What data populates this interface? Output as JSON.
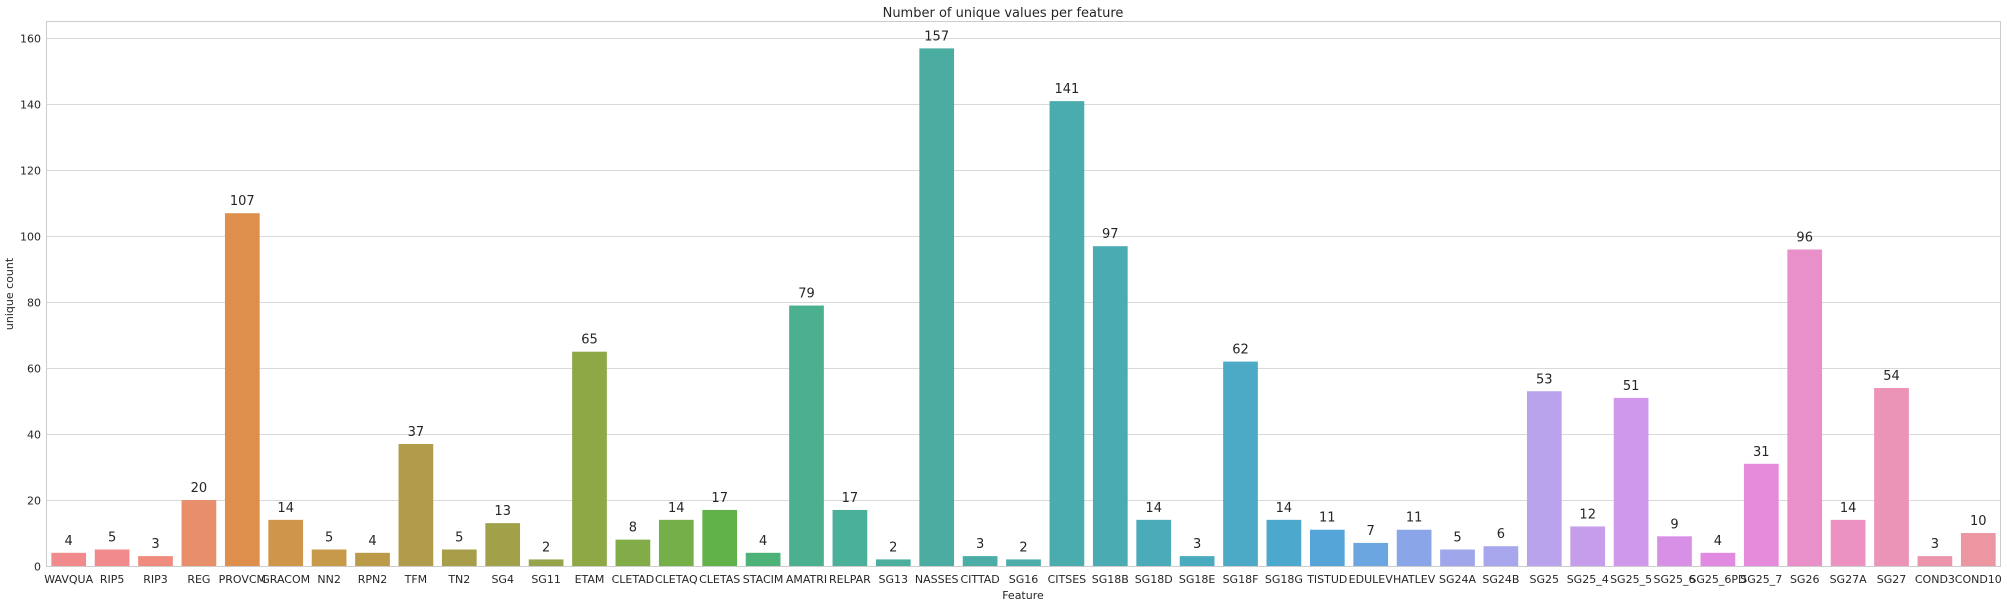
{
  "chart_data": {
    "type": "bar",
    "title": "Number of unique values per feature",
    "xlabel": "Feature",
    "ylabel": "unique count",
    "ylim": [
      0,
      165
    ],
    "yticks": [
      0,
      20,
      40,
      60,
      80,
      100,
      120,
      140,
      160
    ],
    "grid": true,
    "categories": [
      "WAVQUA",
      "RIP5",
      "RIP3",
      "REG",
      "PROVCM",
      "GRACOM",
      "NN2",
      "RPN2",
      "TFM",
      "TN2",
      "SG4",
      "SG11",
      "ETAM",
      "CLETAD",
      "CLETAQ",
      "CLETAS",
      "STACIM",
      "AMATRI",
      "RELPAR",
      "SG13",
      "NASSES",
      "CITTAD",
      "SG16",
      "CITSES",
      "SG18B",
      "SG18D",
      "SG18E",
      "SG18F",
      "SG18G",
      "TISTUD",
      "EDULEV",
      "HATLEV",
      "SG24A",
      "SG24B",
      "SG25",
      "SG25_4",
      "SG25_5",
      "SG25_6",
      "SG25_6PD",
      "SG25_7",
      "SG26",
      "SG27A",
      "SG27",
      "COND3",
      "COND10"
    ],
    "values": [
      4,
      5,
      3,
      20,
      107,
      14,
      5,
      4,
      37,
      5,
      13,
      2,
      65,
      8,
      14,
      17,
      4,
      79,
      17,
      2,
      157,
      3,
      2,
      141,
      97,
      14,
      3,
      62,
      14,
      11,
      7,
      11,
      5,
      6,
      53,
      12,
      51,
      9,
      4,
      31,
      96,
      14,
      54,
      3,
      10
    ],
    "colors": [
      "#f08a8c",
      "#f08a8c",
      "#ef8c7e",
      "#e78f6a",
      "#dd8f4b",
      "#cf964a",
      "#c79a4a",
      "#bb9b4a",
      "#b09c4a",
      "#a89e4a",
      "#a1a149",
      "#98a44a",
      "#8fa846",
      "#82ac47",
      "#74af49",
      "#62b24a",
      "#4cb278",
      "#4bb090",
      "#4bb099",
      "#4bae9f",
      "#4bada2",
      "#4bada6",
      "#4cadab",
      "#4bacae",
      "#4babb3",
      "#4babb8",
      "#4aaabe",
      "#4daac6",
      "#4da8cd",
      "#55a5d8",
      "#6ba6e1",
      "#8aa6e8",
      "#a0a6ea",
      "#a8a6ec",
      "#b9a3ec",
      "#c69deb",
      "#cf98ea",
      "#d890e6",
      "#e08ae1",
      "#e68bdb",
      "#e990cb",
      "#eb92c2",
      "#ec93b8",
      "#ec94ab",
      "#ec96a2"
    ]
  }
}
